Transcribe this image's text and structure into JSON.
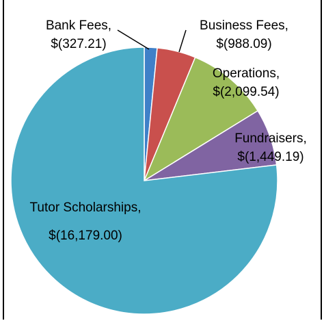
{
  "chart_data": {
    "type": "pie",
    "categories": [
      "Bank Fees",
      "Business Fees",
      "Operations",
      "Fundraisers",
      "Tutor Scholarships"
    ],
    "values": [
      327.21,
      988.09,
      2099.54,
      1449.19,
      16179.0
    ],
    "value_labels": [
      "$(327.21)",
      "$(988.09)",
      "$(2,099.54)",
      "$(1,449.19)",
      "$(16,179.00)"
    ],
    "label_separator": ",",
    "colors": [
      "#3f80c8",
      "#c9504d",
      "#9bbb59",
      "#8064a2",
      "#4bacc6"
    ]
  }
}
